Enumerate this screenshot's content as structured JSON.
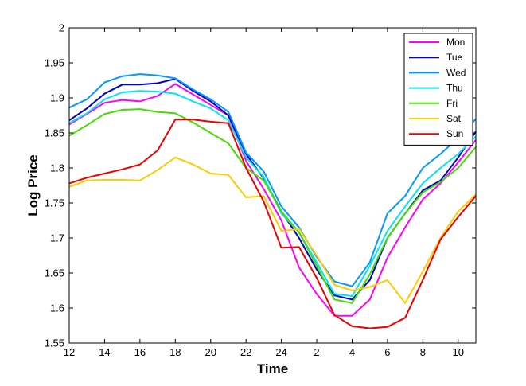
{
  "chart_data": {
    "type": "line",
    "title": "",
    "xlabel": "Time",
    "ylabel": "Log Price",
    "x_tick_labels": [
      "12",
      "14",
      "16",
      "18",
      "20",
      "22",
      "24",
      "2",
      "4",
      "6",
      "8",
      "10"
    ],
    "x": [
      12,
      13,
      14,
      15,
      16,
      17,
      18,
      19,
      20,
      21,
      22,
      23,
      24,
      25,
      26,
      27,
      28,
      29,
      30,
      31,
      32,
      33,
      34,
      35
    ],
    "xlim": [
      12,
      35
    ],
    "ylim": [
      1.55,
      2.0
    ],
    "y_ticks": [
      1.55,
      1.6,
      1.65,
      1.7,
      1.75,
      1.8,
      1.85,
      1.9,
      1.95,
      2.0
    ],
    "y_tick_labels": [
      "1.55",
      "1.6",
      "1.65",
      "1.7",
      "1.75",
      "1.8",
      "1.85",
      "1.9",
      "1.95",
      "2"
    ],
    "legend_position": "top-right",
    "series": [
      {
        "name": "Mon",
        "color": "#ff00ff",
        "values": [
          1.862,
          1.877,
          1.893,
          1.897,
          1.895,
          1.903,
          1.92,
          1.905,
          1.89,
          1.875,
          1.81,
          1.77,
          1.725,
          1.658,
          1.62,
          1.589,
          1.589,
          1.612,
          1.672,
          1.715,
          1.755,
          1.778,
          1.808,
          1.84
        ]
      },
      {
        "name": "Tue",
        "color": "#0000cc",
        "values": [
          1.868,
          1.885,
          1.906,
          1.919,
          1.919,
          1.921,
          1.927,
          1.91,
          1.895,
          1.875,
          1.82,
          1.785,
          1.738,
          1.7,
          1.655,
          1.618,
          1.612,
          1.64,
          1.7,
          1.735,
          1.768,
          1.782,
          1.815,
          1.852
        ]
      },
      {
        "name": "Wed",
        "color": "#0099ff",
        "values": [
          1.886,
          1.898,
          1.922,
          1.931,
          1.934,
          1.932,
          1.928,
          1.912,
          1.898,
          1.88,
          1.822,
          1.795,
          1.745,
          1.715,
          1.673,
          1.638,
          1.631,
          1.665,
          1.735,
          1.76,
          1.8,
          1.82,
          1.843,
          1.87
        ]
      },
      {
        "name": "Thu",
        "color": "#00e5ee",
        "values": [
          1.864,
          1.878,
          1.898,
          1.908,
          1.91,
          1.909,
          1.906,
          1.895,
          1.885,
          1.868,
          1.815,
          1.787,
          1.735,
          1.708,
          1.665,
          1.62,
          1.617,
          1.66,
          1.71,
          1.745,
          1.778,
          1.8,
          1.82,
          1.845
        ]
      },
      {
        "name": "Fri",
        "color": "#44dd00",
        "values": [
          1.846,
          1.861,
          1.877,
          1.883,
          1.884,
          1.88,
          1.878,
          1.865,
          1.85,
          1.835,
          1.8,
          1.782,
          1.738,
          1.708,
          1.66,
          1.612,
          1.607,
          1.648,
          1.7,
          1.735,
          1.765,
          1.78,
          1.8,
          1.83
        ]
      },
      {
        "name": "Sat",
        "color": "#ffcc00",
        "values": [
          1.773,
          1.782,
          1.783,
          1.783,
          1.782,
          1.797,
          1.815,
          1.805,
          1.792,
          1.79,
          1.758,
          1.76,
          1.71,
          1.713,
          1.675,
          1.633,
          1.625,
          1.63,
          1.64,
          1.607,
          1.652,
          1.7,
          1.738,
          1.762
        ]
      },
      {
        "name": "Sun",
        "color": "#ee0000",
        "values": [
          1.778,
          1.786,
          1.792,
          1.798,
          1.805,
          1.825,
          1.869,
          1.869,
          1.866,
          1.864,
          1.8,
          1.752,
          1.686,
          1.687,
          1.643,
          1.59,
          1.574,
          1.571,
          1.573,
          1.586,
          1.64,
          1.698,
          1.73,
          1.76
        ]
      }
    ]
  }
}
